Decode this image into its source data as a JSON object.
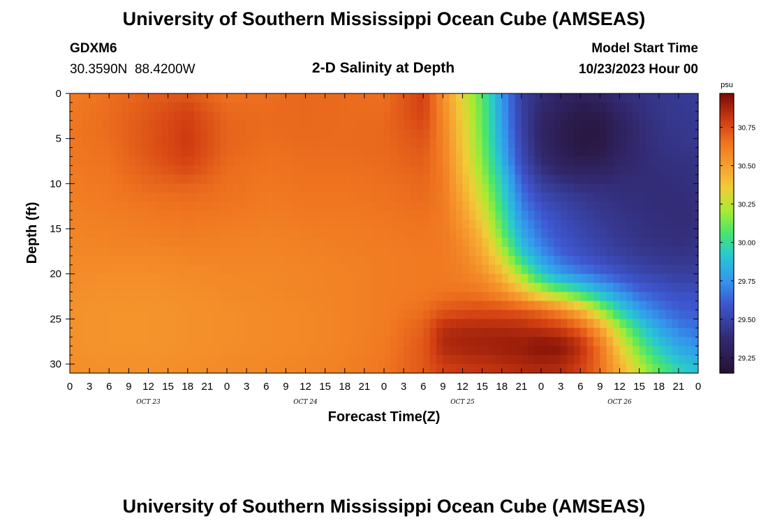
{
  "page": {
    "title": "University of Southern Mississippi Ocean Cube (AMSEAS)",
    "footer_title": "University of Southern Mississippi Ocean Cube (AMSEAS)",
    "station_id": "GDXM6",
    "location": "30.3590N  88.4200W",
    "plot_title": "2-D Salinity at Depth",
    "model_start_label": "Model Start Time",
    "model_start_value": "10/23/2023 Hour 00"
  },
  "chart_data": {
    "type": "heatmap",
    "title": "2-D Salinity at Depth",
    "xlabel": "Forecast Time(Z)",
    "ylabel": "Depth (ft)",
    "x_range_hours": [
      0,
      96
    ],
    "ylim": [
      31,
      0
    ],
    "x_tick_labels": [
      "0",
      "3",
      "6",
      "9",
      "12",
      "15",
      "18",
      "21",
      "0",
      "3",
      "6",
      "9",
      "12",
      "15",
      "18",
      "21",
      "0",
      "3",
      "6",
      "9",
      "12",
      "15",
      "18",
      "21",
      "0",
      "3",
      "6",
      "9",
      "12",
      "15",
      "18",
      "21",
      "0"
    ],
    "date_labels": [
      {
        "text": "OCT 23",
        "hour": 12
      },
      {
        "text": "OCT 24",
        "hour": 36
      },
      {
        "text": "OCT 25",
        "hour": 60
      },
      {
        "text": "OCT 26",
        "hour": 84
      }
    ],
    "y_ticks": [
      0,
      5,
      10,
      15,
      20,
      25,
      30
    ],
    "colorbar": {
      "unit": "psu",
      "min": 29.15,
      "max": 30.97,
      "ticks": [
        29.25,
        29.5,
        29.75,
        30.0,
        30.25,
        30.5,
        30.75
      ],
      "tick_labels": [
        "29.25",
        "29.50",
        "29.75",
        "30.00",
        "30.25",
        "30.50",
        "30.75"
      ]
    },
    "depths_ft": [
      0,
      2,
      4,
      6,
      8,
      10,
      12,
      14,
      16,
      18,
      20,
      22,
      24,
      26,
      28,
      30,
      31
    ],
    "hours": [
      0,
      6,
      12,
      18,
      24,
      30,
      36,
      42,
      48,
      54,
      57,
      60,
      63,
      66,
      69,
      72,
      75,
      78,
      81,
      84,
      87,
      90,
      93,
      96
    ],
    "salinity_psu": [
      [
        30.62,
        30.66,
        30.7,
        30.72,
        30.65,
        30.66,
        30.68,
        30.67,
        30.66,
        30.79,
        30.56,
        30.31,
        30.08,
        29.77,
        29.48,
        29.4,
        29.33,
        29.31,
        29.34,
        29.4,
        29.42,
        29.44,
        29.46,
        29.47
      ],
      [
        30.63,
        30.67,
        30.72,
        30.78,
        30.68,
        30.67,
        30.68,
        30.67,
        30.67,
        30.78,
        30.58,
        30.34,
        30.1,
        29.78,
        29.49,
        29.36,
        29.29,
        29.24,
        29.25,
        29.34,
        29.4,
        29.43,
        29.45,
        29.46
      ],
      [
        30.64,
        30.67,
        30.73,
        30.8,
        30.69,
        30.67,
        30.68,
        30.67,
        30.68,
        30.75,
        30.6,
        30.36,
        30.11,
        29.79,
        29.5,
        29.34,
        29.26,
        29.21,
        29.21,
        29.3,
        29.38,
        29.42,
        29.44,
        29.45
      ],
      [
        30.64,
        30.66,
        30.73,
        30.8,
        30.69,
        30.66,
        30.67,
        30.67,
        30.68,
        30.72,
        30.61,
        30.38,
        30.13,
        29.82,
        29.52,
        29.35,
        29.27,
        29.21,
        29.22,
        29.31,
        29.38,
        29.41,
        29.43,
        29.44
      ],
      [
        30.63,
        30.65,
        30.71,
        30.77,
        30.67,
        30.65,
        30.66,
        30.66,
        30.67,
        30.7,
        30.62,
        30.4,
        30.16,
        29.87,
        29.56,
        29.4,
        29.32,
        29.29,
        29.3,
        29.35,
        29.38,
        29.4,
        29.41,
        29.42
      ],
      [
        30.62,
        30.64,
        30.68,
        30.7,
        30.66,
        30.64,
        30.65,
        30.65,
        30.66,
        30.68,
        30.63,
        30.44,
        30.22,
        29.95,
        29.63,
        29.48,
        29.42,
        29.4,
        29.39,
        29.39,
        29.39,
        29.39,
        29.4,
        29.41
      ],
      [
        30.61,
        30.63,
        30.65,
        30.66,
        30.65,
        30.63,
        30.64,
        30.64,
        30.65,
        30.67,
        30.63,
        30.48,
        30.28,
        30.0,
        29.69,
        29.56,
        29.5,
        29.46,
        29.43,
        29.41,
        29.4,
        29.39,
        29.39,
        29.4
      ],
      [
        30.6,
        30.61,
        30.63,
        30.64,
        30.63,
        30.62,
        30.63,
        30.63,
        30.64,
        30.65,
        30.63,
        30.52,
        30.35,
        30.06,
        29.76,
        29.62,
        29.55,
        29.5,
        29.46,
        29.43,
        29.41,
        29.4,
        29.39,
        29.4
      ],
      [
        30.59,
        30.6,
        30.61,
        30.62,
        30.61,
        30.6,
        30.61,
        30.62,
        30.63,
        30.64,
        30.63,
        30.56,
        30.42,
        30.14,
        29.83,
        29.67,
        29.58,
        29.53,
        29.49,
        29.45,
        29.42,
        29.41,
        29.4,
        29.41
      ],
      [
        30.58,
        30.58,
        30.58,
        30.59,
        30.59,
        30.59,
        30.6,
        30.61,
        30.62,
        30.63,
        30.63,
        30.59,
        30.48,
        30.28,
        29.96,
        29.76,
        29.64,
        29.58,
        29.53,
        29.49,
        29.46,
        29.44,
        29.43,
        29.44
      ],
      [
        30.57,
        30.56,
        30.56,
        30.57,
        30.58,
        30.58,
        30.59,
        30.6,
        30.62,
        30.63,
        30.63,
        30.61,
        30.55,
        30.42,
        30.18,
        29.92,
        29.78,
        29.7,
        29.64,
        29.58,
        29.53,
        29.5,
        29.48,
        29.48
      ],
      [
        30.56,
        30.55,
        30.55,
        30.56,
        30.57,
        30.58,
        30.59,
        30.6,
        30.62,
        30.63,
        30.64,
        30.65,
        30.63,
        30.56,
        30.42,
        30.25,
        30.12,
        30.0,
        29.86,
        29.74,
        29.64,
        29.59,
        29.56,
        29.55
      ],
      [
        30.55,
        30.54,
        30.54,
        30.55,
        30.56,
        30.57,
        30.58,
        30.6,
        30.62,
        30.66,
        30.72,
        30.74,
        30.75,
        30.74,
        30.72,
        30.66,
        30.58,
        30.43,
        30.2,
        29.95,
        29.78,
        29.68,
        29.62,
        29.6
      ],
      [
        30.55,
        30.54,
        30.54,
        30.55,
        30.56,
        30.57,
        30.58,
        30.6,
        30.62,
        30.7,
        30.84,
        30.86,
        30.86,
        30.86,
        30.85,
        30.83,
        30.79,
        30.7,
        30.5,
        30.2,
        29.96,
        29.8,
        29.7,
        29.66
      ],
      [
        30.55,
        30.54,
        30.54,
        30.55,
        30.56,
        30.57,
        30.58,
        30.6,
        30.63,
        30.72,
        30.86,
        30.88,
        30.89,
        30.9,
        30.91,
        30.94,
        30.93,
        30.84,
        30.65,
        30.35,
        30.1,
        29.92,
        29.8,
        29.74
      ],
      [
        30.56,
        30.55,
        30.55,
        30.56,
        30.57,
        30.58,
        30.59,
        30.61,
        30.64,
        30.72,
        30.8,
        30.82,
        30.83,
        30.85,
        30.87,
        30.88,
        30.87,
        30.8,
        30.66,
        30.44,
        30.22,
        30.05,
        29.92,
        29.86
      ],
      [
        30.56,
        30.55,
        30.55,
        30.56,
        30.57,
        30.58,
        30.59,
        30.61,
        30.64,
        30.72,
        30.78,
        30.8,
        30.81,
        30.82,
        30.84,
        30.85,
        30.84,
        30.78,
        30.66,
        30.46,
        30.26,
        30.1,
        29.97,
        29.9
      ]
    ]
  }
}
